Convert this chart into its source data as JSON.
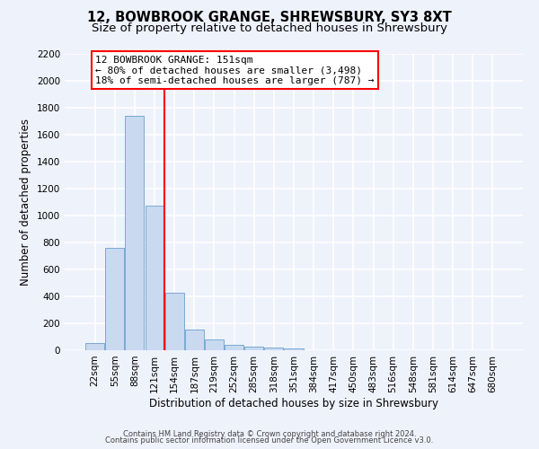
{
  "title": "12, BOWBROOK GRANGE, SHREWSBURY, SY3 8XT",
  "subtitle": "Size of property relative to detached houses in Shrewsbury",
  "xlabel": "Distribution of detached houses by size in Shrewsbury",
  "ylabel": "Number of detached properties",
  "bar_labels": [
    "22sqm",
    "55sqm",
    "88sqm",
    "121sqm",
    "154sqm",
    "187sqm",
    "219sqm",
    "252sqm",
    "285sqm",
    "318sqm",
    "351sqm",
    "384sqm",
    "417sqm",
    "450sqm",
    "483sqm",
    "516sqm",
    "548sqm",
    "581sqm",
    "614sqm",
    "647sqm",
    "680sqm"
  ],
  "bar_values": [
    55,
    760,
    1740,
    1075,
    430,
    155,
    80,
    40,
    30,
    20,
    15,
    0,
    0,
    0,
    0,
    0,
    0,
    0,
    0,
    0,
    0
  ],
  "bar_color": "#c8d9f0",
  "bar_edgecolor": "#7aaad0",
  "vline_color": "red",
  "annotation_text": "12 BOWBROOK GRANGE: 151sqm\n← 80% of detached houses are smaller (3,498)\n18% of semi-detached houses are larger (787) →",
  "annotation_box_color": "white",
  "annotation_box_edgecolor": "red",
  "ylim": [
    0,
    2200
  ],
  "yticks": [
    0,
    200,
    400,
    600,
    800,
    1000,
    1200,
    1400,
    1600,
    1800,
    2000,
    2200
  ],
  "bg_color": "#eef2fb",
  "grid_color": "white",
  "footer_line1": "Contains HM Land Registry data © Crown copyright and database right 2024.",
  "footer_line2": "Contains public sector information licensed under the Open Government Licence v3.0.",
  "title_fontsize": 10.5,
  "subtitle_fontsize": 9.5,
  "xlabel_fontsize": 8.5,
  "ylabel_fontsize": 8.5,
  "annotation_fontsize": 8,
  "tick_fontsize": 7.5,
  "footer_fontsize": 6
}
